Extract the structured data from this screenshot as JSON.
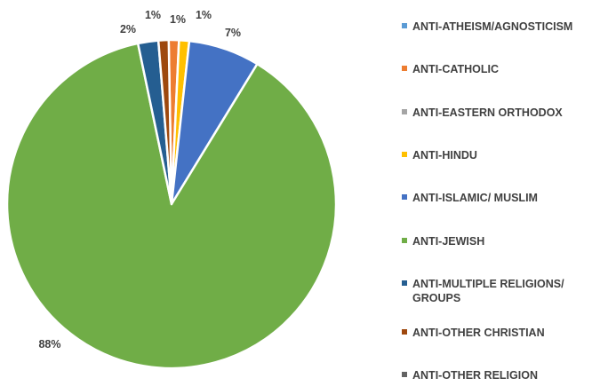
{
  "chart_data": {
    "type": "pie",
    "title": "",
    "legend_position": "right",
    "slices": [
      {
        "name": "ANTI-ATHEISM/AGNOSTICISM",
        "value": 0,
        "label": "",
        "color": "#5B9BD5"
      },
      {
        "name": "ANTI-CATHOLIC",
        "value": 1,
        "label": "1%",
        "color": "#ED7D31"
      },
      {
        "name": "ANTI-EASTERN ORTHODOX",
        "value": 0,
        "label": "",
        "color": "#A5A5A5"
      },
      {
        "name": "ANTI-HINDU",
        "value": 1,
        "label": "1%",
        "color": "#FFC000"
      },
      {
        "name": "ANTI-ISLAMIC/ MUSLIM",
        "value": 7,
        "label": "7%",
        "color": "#4472C4"
      },
      {
        "name": "ANTI-JEWISH",
        "value": 88,
        "label": "88%",
        "color": "#70AD47"
      },
      {
        "name": "ANTI-MULTIPLE RELIGIONS/ GROUPS",
        "value": 2,
        "label": "2%",
        "color": "#255E91"
      },
      {
        "name": "ANTI-OTHER CHRISTIAN",
        "value": 1,
        "label": "1%",
        "color": "#9E480E"
      },
      {
        "name": "ANTI-OTHER RELIGION",
        "value": 0,
        "label": "",
        "color": "#636363"
      }
    ]
  }
}
